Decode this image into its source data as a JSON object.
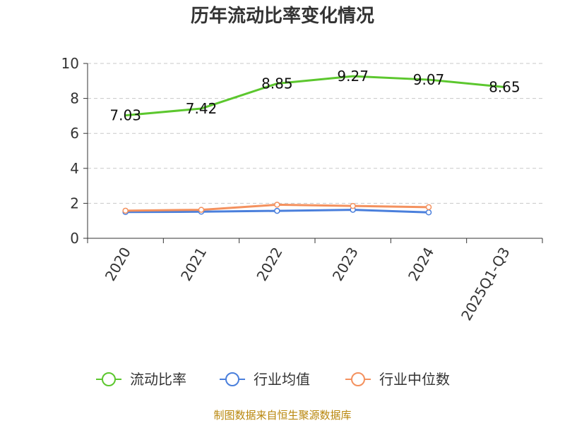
{
  "chart_data": {
    "type": "line",
    "title": "历年流动比率变化情况",
    "categories": [
      "2020",
      "2021",
      "2022",
      "2023",
      "2024",
      "2025Q1-Q3"
    ],
    "ylim": [
      0,
      10
    ],
    "yticks": [
      0,
      2,
      4,
      6,
      8,
      10
    ],
    "grid": true,
    "legend_position": "bottom",
    "series": [
      {
        "name": "流动比率",
        "color": "#5cc72e",
        "values": [
          7.03,
          7.42,
          8.85,
          9.27,
          9.07,
          8.65
        ],
        "labels": [
          "7.03",
          "7.42",
          "8.85",
          "9.27",
          "9.07",
          "8.65"
        ]
      },
      {
        "name": "行业均值",
        "color": "#4a7fdc",
        "values": [
          1.5,
          1.52,
          1.57,
          1.63,
          1.48,
          null
        ]
      },
      {
        "name": "行业中位数",
        "color": "#f4915e",
        "values": [
          1.58,
          1.63,
          1.92,
          1.85,
          1.78,
          null
        ]
      }
    ]
  },
  "source": "制图数据来自恒生聚源数据库"
}
